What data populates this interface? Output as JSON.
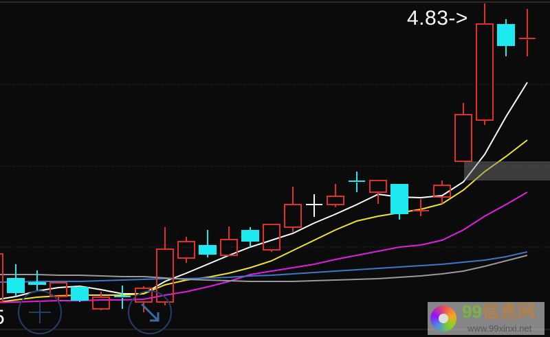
{
  "chart_data": {
    "type": "candlestick",
    "title": "",
    "xlabel": "",
    "ylabel": "",
    "grid": true,
    "max_label": "4.83->",
    "left_edge_label": "5",
    "colors": {
      "up": "#e0302c",
      "down": "#1ee8f0",
      "doji_flat": "#ffffff",
      "background": "#0b0b0c",
      "grid": "#3a3a3a"
    },
    "candles": [
      {
        "o": 2.655,
        "h": 3.03,
        "l": 2.63,
        "c": 3.005
      },
      {
        "o": 2.83,
        "h": 2.93,
        "l": 2.695,
        "c": 2.72
      },
      {
        "o": 2.8,
        "h": 2.885,
        "l": 2.73,
        "c": 2.78
      },
      {
        "o": 2.695,
        "h": 2.795,
        "l": 2.655,
        "c": 2.795
      },
      {
        "o": 2.765,
        "h": 2.77,
        "l": 2.655,
        "c": 2.665
      },
      {
        "o": 2.605,
        "h": 2.73,
        "l": 2.595,
        "c": 2.69
      },
      {
        "o": 2.695,
        "h": 2.775,
        "l": 2.605,
        "c": 2.685
      },
      {
        "o": 2.655,
        "h": 2.77,
        "l": 2.58,
        "c": 2.755
      },
      {
        "o": 2.655,
        "h": 3.2,
        "l": 2.63,
        "c": 3.04
      },
      {
        "o": 2.975,
        "h": 3.13,
        "l": 2.94,
        "c": 3.095
      },
      {
        "o": 3.07,
        "h": 3.18,
        "l": 2.98,
        "c": 3.0
      },
      {
        "o": 2.995,
        "h": 3.205,
        "l": 2.995,
        "c": 3.11
      },
      {
        "o": 3.18,
        "h": 3.2,
        "l": 3.055,
        "c": 3.095
      },
      {
        "o": 3.035,
        "h": 3.22,
        "l": 3.02,
        "c": 3.22
      },
      {
        "o": 3.2,
        "h": 3.495,
        "l": 3.165,
        "c": 3.365
      },
      {
        "o": 3.365,
        "h": 3.44,
        "l": 3.275,
        "c": 3.365
      },
      {
        "o": 3.365,
        "h": 3.515,
        "l": 3.345,
        "c": 3.425
      },
      {
        "o": 3.535,
        "h": 3.605,
        "l": 3.455,
        "c": 3.525
      },
      {
        "o": 3.455,
        "h": 3.54,
        "l": 3.37,
        "c": 3.54
      },
      {
        "o": 3.515,
        "h": 3.515,
        "l": 3.255,
        "c": 3.295
      },
      {
        "o": 3.315,
        "h": 3.405,
        "l": 3.28,
        "c": 3.32
      },
      {
        "o": 3.42,
        "h": 3.54,
        "l": 3.37,
        "c": 3.505
      },
      {
        "o": 3.68,
        "h": 4.105,
        "l": 3.68,
        "c": 4.02
      },
      {
        "o": 3.98,
        "h": 4.83,
        "l": 3.945,
        "c": 4.68
      },
      {
        "o": 4.68,
        "h": 4.715,
        "l": 4.445,
        "c": 4.52
      },
      {
        "o": 4.565,
        "h": 4.79,
        "l": 4.445,
        "c": 4.575
      }
    ],
    "series": [
      {
        "color": "#ffffff",
        "values": [
          2.67,
          2.695,
          2.735,
          2.76,
          2.77,
          2.745,
          2.715,
          2.715,
          2.805,
          2.865,
          2.93,
          2.995,
          3.055,
          3.105,
          3.155,
          3.23,
          3.295,
          3.365,
          3.44,
          3.42,
          3.415,
          3.43,
          3.53,
          3.73,
          4.005,
          4.255
        ]
      },
      {
        "color": "#f2e32a",
        "values": [
          2.65,
          2.67,
          2.69,
          2.7,
          2.705,
          2.705,
          2.705,
          2.715,
          2.78,
          2.815,
          2.835,
          2.865,
          2.905,
          2.955,
          3.03,
          3.105,
          3.18,
          3.245,
          3.28,
          3.305,
          3.33,
          3.37,
          3.47,
          3.605,
          3.715,
          3.835
        ]
      },
      {
        "color": "#e21ee0",
        "values": [
          2.65,
          2.655,
          2.66,
          2.665,
          2.665,
          2.67,
          2.67,
          2.675,
          2.705,
          2.73,
          2.765,
          2.805,
          2.855,
          2.88,
          2.905,
          2.93,
          2.965,
          2.995,
          3.025,
          3.055,
          3.07,
          3.105,
          3.18,
          3.28,
          3.365,
          3.455
        ]
      },
      {
        "color": "#3d78c8",
        "values": [
          2.8,
          2.8,
          2.805,
          2.805,
          2.805,
          2.81,
          2.815,
          2.82,
          2.825,
          2.825,
          2.83,
          2.835,
          2.845,
          2.85,
          2.86,
          2.87,
          2.88,
          2.89,
          2.9,
          2.91,
          2.92,
          2.93,
          2.945,
          2.96,
          2.985,
          3.02
        ]
      },
      {
        "color": "#9a9a9a",
        "values": [
          2.855,
          2.855,
          2.855,
          2.85,
          2.85,
          2.845,
          2.84,
          2.84,
          2.83,
          2.82,
          2.815,
          2.81,
          2.805,
          2.805,
          2.805,
          2.81,
          2.815,
          2.82,
          2.825,
          2.835,
          2.845,
          2.86,
          2.88,
          2.915,
          2.955,
          2.995
        ]
      }
    ]
  },
  "controls": {
    "zoom_in_icon": "plus-icon",
    "expand_icon": "arrow-down-right-icon"
  },
  "watermark": {
    "digits": "99",
    "name": "信息网",
    "url": "www.99xinxi.net"
  }
}
